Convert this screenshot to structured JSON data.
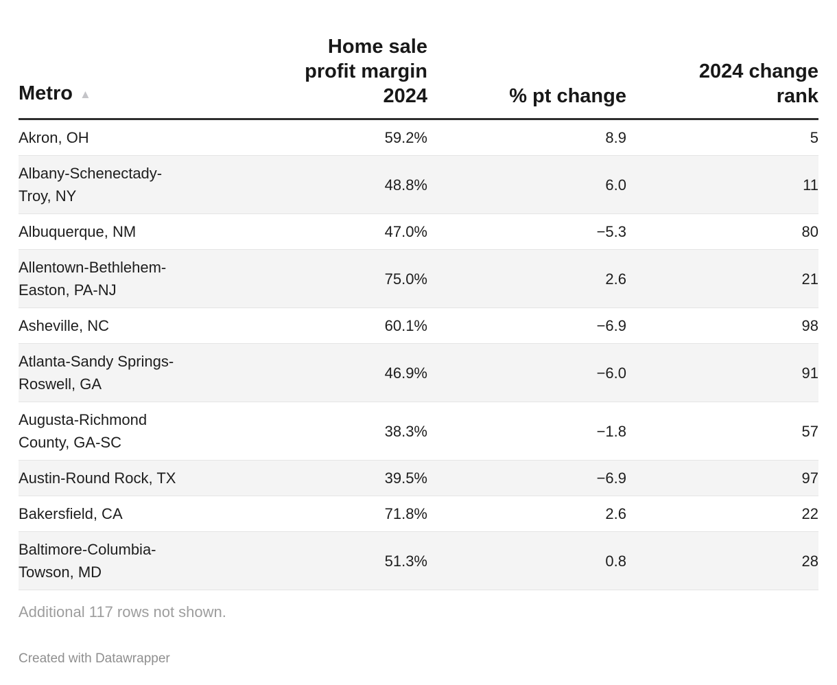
{
  "chart_data": {
    "type": "table",
    "title": "",
    "columns": [
      "Metro",
      "Home sale profit margin 2024",
      "% pt change",
      "2024 change rank"
    ],
    "rows": [
      [
        "Akron, OH",
        "59.2%",
        8.9,
        5
      ],
      [
        "Albany-Schenectady-Troy, NY",
        "48.8%",
        6.0,
        11
      ],
      [
        "Albuquerque, NM",
        "47.0%",
        -5.3,
        80
      ],
      [
        "Allentown-Bethlehem-Easton, PA-NJ",
        "75.0%",
        2.6,
        21
      ],
      [
        "Asheville, NC",
        "60.1%",
        -6.9,
        98
      ],
      [
        "Atlanta-Sandy Springs-Roswell, GA",
        "46.9%",
        -6.0,
        91
      ],
      [
        "Augusta-Richmond County, GA-SC",
        "38.3%",
        -1.8,
        57
      ],
      [
        "Austin-Round Rock, TX",
        "39.5%",
        -6.9,
        97
      ],
      [
        "Bakersfield, CA",
        "71.8%",
        2.6,
        22
      ],
      [
        "Baltimore-Columbia-Towson, MD",
        "51.3%",
        0.8,
        28
      ]
    ],
    "sort": "Metro ascending",
    "notes": "Additional 117 rows not shown.",
    "layout_hints": {
      "zebra_stripes": true,
      "numeric_columns_right_aligned": true
    }
  },
  "table": {
    "columns": [
      {
        "label": "Metro",
        "sorted": "ascending"
      },
      {
        "label": "Home sale\nprofit margin\n2024"
      },
      {
        "label": "% pt change"
      },
      {
        "label": "2024 change\nrank"
      }
    ],
    "rows": [
      {
        "metro": "Akron, OH",
        "margin": "59.2%",
        "change": "8.9",
        "rank": "5"
      },
      {
        "metro": "Albany-Schenectady-\nTroy, NY",
        "margin": "48.8%",
        "change": "6.0",
        "rank": "11"
      },
      {
        "metro": "Albuquerque, NM",
        "margin": "47.0%",
        "change": "−5.3",
        "rank": "80"
      },
      {
        "metro": "Allentown-Bethlehem-\nEaston, PA-NJ",
        "margin": "75.0%",
        "change": "2.6",
        "rank": "21"
      },
      {
        "metro": "Asheville, NC",
        "margin": "60.1%",
        "change": "−6.9",
        "rank": "98"
      },
      {
        "metro": "Atlanta-Sandy Springs-\nRoswell, GA",
        "margin": "46.9%",
        "change": "−6.0",
        "rank": "91"
      },
      {
        "metro": "Augusta-Richmond\nCounty, GA-SC",
        "margin": "38.3%",
        "change": "−1.8",
        "rank": "57"
      },
      {
        "metro": "Austin-Round Rock, TX",
        "margin": "39.5%",
        "change": "−6.9",
        "rank": "97"
      },
      {
        "metro": "Bakersfield, CA",
        "margin": "71.8%",
        "change": "2.6",
        "rank": "22"
      },
      {
        "metro": "Baltimore-Columbia-\nTowson, MD",
        "margin": "51.3%",
        "change": "0.8",
        "rank": "28"
      }
    ]
  },
  "icons": {
    "sort_ascending": "▲"
  },
  "footer": {
    "note": "Additional 117 rows not shown.",
    "attribution": "Created with Datawrapper"
  },
  "colors": {
    "background": "#ffffff",
    "text": "#1d1d1d",
    "header_text": "#181818",
    "stripe": "#f4f4f4",
    "row_border": "#e4e4e4",
    "header_border": "#2e2e2e",
    "note_text": "#9d9d9d",
    "attribution_text": "#8f8f8f",
    "sort_arrow": "#c4c4c8"
  }
}
